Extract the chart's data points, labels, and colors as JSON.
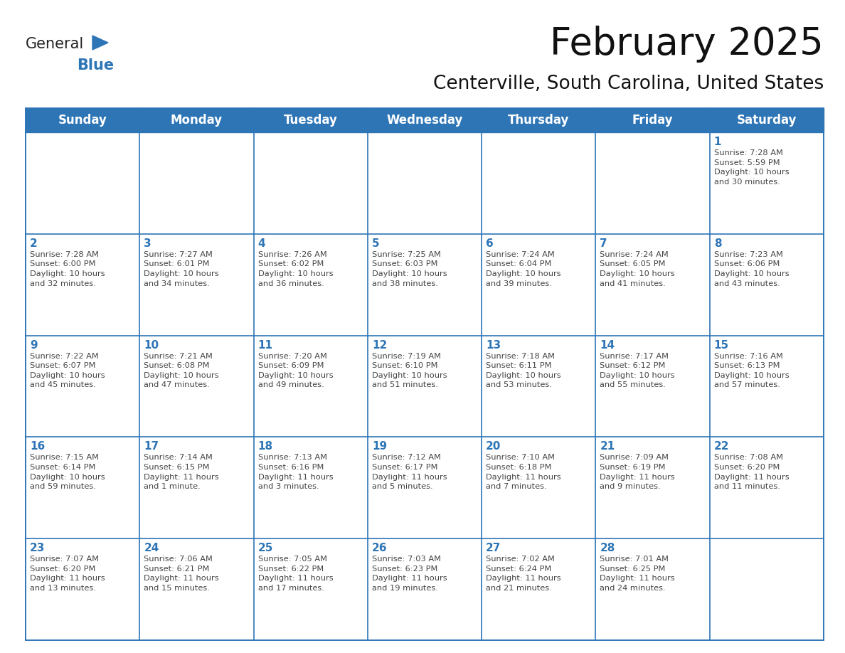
{
  "title": "February 2025",
  "subtitle": "Centerville, South Carolina, United States",
  "header_bg": "#2E75B6",
  "header_text_color": "#FFFFFF",
  "cell_border_color": "#2E75B6",
  "day_number_color": "#2E75B6",
  "cell_text_color": "#444444",
  "background_color": "#FFFFFF",
  "days_of_week": [
    "Sunday",
    "Monday",
    "Tuesday",
    "Wednesday",
    "Thursday",
    "Friday",
    "Saturday"
  ],
  "weeks": [
    [
      {
        "day": "",
        "text": ""
      },
      {
        "day": "",
        "text": ""
      },
      {
        "day": "",
        "text": ""
      },
      {
        "day": "",
        "text": ""
      },
      {
        "day": "",
        "text": ""
      },
      {
        "day": "",
        "text": ""
      },
      {
        "day": "1",
        "text": "Sunrise: 7:28 AM\nSunset: 5:59 PM\nDaylight: 10 hours\nand 30 minutes."
      }
    ],
    [
      {
        "day": "2",
        "text": "Sunrise: 7:28 AM\nSunset: 6:00 PM\nDaylight: 10 hours\nand 32 minutes."
      },
      {
        "day": "3",
        "text": "Sunrise: 7:27 AM\nSunset: 6:01 PM\nDaylight: 10 hours\nand 34 minutes."
      },
      {
        "day": "4",
        "text": "Sunrise: 7:26 AM\nSunset: 6:02 PM\nDaylight: 10 hours\nand 36 minutes."
      },
      {
        "day": "5",
        "text": "Sunrise: 7:25 AM\nSunset: 6:03 PM\nDaylight: 10 hours\nand 38 minutes."
      },
      {
        "day": "6",
        "text": "Sunrise: 7:24 AM\nSunset: 6:04 PM\nDaylight: 10 hours\nand 39 minutes."
      },
      {
        "day": "7",
        "text": "Sunrise: 7:24 AM\nSunset: 6:05 PM\nDaylight: 10 hours\nand 41 minutes."
      },
      {
        "day": "8",
        "text": "Sunrise: 7:23 AM\nSunset: 6:06 PM\nDaylight: 10 hours\nand 43 minutes."
      }
    ],
    [
      {
        "day": "9",
        "text": "Sunrise: 7:22 AM\nSunset: 6:07 PM\nDaylight: 10 hours\nand 45 minutes."
      },
      {
        "day": "10",
        "text": "Sunrise: 7:21 AM\nSunset: 6:08 PM\nDaylight: 10 hours\nand 47 minutes."
      },
      {
        "day": "11",
        "text": "Sunrise: 7:20 AM\nSunset: 6:09 PM\nDaylight: 10 hours\nand 49 minutes."
      },
      {
        "day": "12",
        "text": "Sunrise: 7:19 AM\nSunset: 6:10 PM\nDaylight: 10 hours\nand 51 minutes."
      },
      {
        "day": "13",
        "text": "Sunrise: 7:18 AM\nSunset: 6:11 PM\nDaylight: 10 hours\nand 53 minutes."
      },
      {
        "day": "14",
        "text": "Sunrise: 7:17 AM\nSunset: 6:12 PM\nDaylight: 10 hours\nand 55 minutes."
      },
      {
        "day": "15",
        "text": "Sunrise: 7:16 AM\nSunset: 6:13 PM\nDaylight: 10 hours\nand 57 minutes."
      }
    ],
    [
      {
        "day": "16",
        "text": "Sunrise: 7:15 AM\nSunset: 6:14 PM\nDaylight: 10 hours\nand 59 minutes."
      },
      {
        "day": "17",
        "text": "Sunrise: 7:14 AM\nSunset: 6:15 PM\nDaylight: 11 hours\nand 1 minute."
      },
      {
        "day": "18",
        "text": "Sunrise: 7:13 AM\nSunset: 6:16 PM\nDaylight: 11 hours\nand 3 minutes."
      },
      {
        "day": "19",
        "text": "Sunrise: 7:12 AM\nSunset: 6:17 PM\nDaylight: 11 hours\nand 5 minutes."
      },
      {
        "day": "20",
        "text": "Sunrise: 7:10 AM\nSunset: 6:18 PM\nDaylight: 11 hours\nand 7 minutes."
      },
      {
        "day": "21",
        "text": "Sunrise: 7:09 AM\nSunset: 6:19 PM\nDaylight: 11 hours\nand 9 minutes."
      },
      {
        "day": "22",
        "text": "Sunrise: 7:08 AM\nSunset: 6:20 PM\nDaylight: 11 hours\nand 11 minutes."
      }
    ],
    [
      {
        "day": "23",
        "text": "Sunrise: 7:07 AM\nSunset: 6:20 PM\nDaylight: 11 hours\nand 13 minutes."
      },
      {
        "day": "24",
        "text": "Sunrise: 7:06 AM\nSunset: 6:21 PM\nDaylight: 11 hours\nand 15 minutes."
      },
      {
        "day": "25",
        "text": "Sunrise: 7:05 AM\nSunset: 6:22 PM\nDaylight: 11 hours\nand 17 minutes."
      },
      {
        "day": "26",
        "text": "Sunrise: 7:03 AM\nSunset: 6:23 PM\nDaylight: 11 hours\nand 19 minutes."
      },
      {
        "day": "27",
        "text": "Sunrise: 7:02 AM\nSunset: 6:24 PM\nDaylight: 11 hours\nand 21 minutes."
      },
      {
        "day": "28",
        "text": "Sunrise: 7:01 AM\nSunset: 6:25 PM\nDaylight: 11 hours\nand 24 minutes."
      },
      {
        "day": "",
        "text": ""
      }
    ]
  ],
  "logo_general_color": "#222222",
  "logo_blue_color": "#2E75B6",
  "title_fontsize": 38,
  "subtitle_fontsize": 19,
  "header_fontsize": 12,
  "day_num_fontsize": 11,
  "cell_text_fontsize": 8.2
}
